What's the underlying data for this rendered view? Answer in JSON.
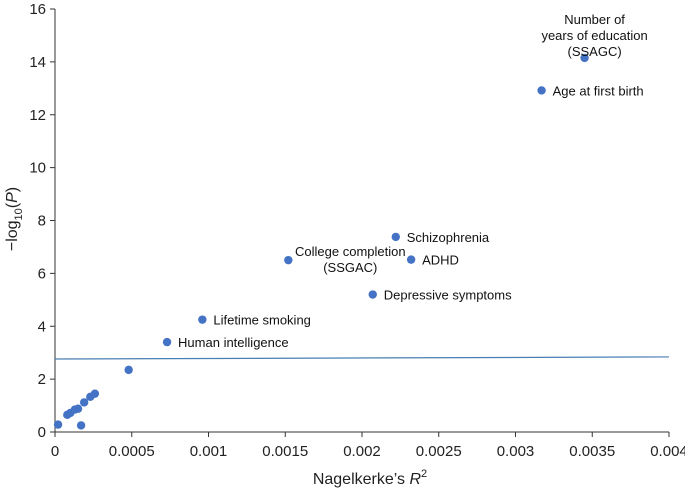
{
  "chart_data": {
    "type": "scatter",
    "title": "",
    "xlabel": "Nagelkerke’s R",
    "xlabel_sup": "2",
    "ylabel_prefix": "−log",
    "ylabel_sub": "10",
    "ylabel_suffix": "(P)",
    "xlim": [
      0,
      0.004
    ],
    "ylim": [
      0,
      16
    ],
    "x_ticks": [
      "0",
      "0.0005",
      "0.001",
      "0.0015",
      "0.002",
      "0.0025",
      "0.003",
      "0.0035",
      "0.004"
    ],
    "y_ticks": [
      "0",
      "2",
      "4",
      "6",
      "8",
      "10",
      "12",
      "14",
      "16"
    ],
    "point_color": "#4472c4",
    "line_color": "#4a7fb5",
    "threshold_line": {
      "x": [
        0,
        0.004
      ],
      "y": [
        2.76,
        2.84
      ]
    },
    "points": [
      {
        "x": 2e-05,
        "y": 0.28,
        "label": ""
      },
      {
        "x": 8e-05,
        "y": 0.65,
        "label": ""
      },
      {
        "x": 0.0001,
        "y": 0.72,
        "label": ""
      },
      {
        "x": 0.00013,
        "y": 0.85,
        "label": ""
      },
      {
        "x": 0.00015,
        "y": 0.88,
        "label": ""
      },
      {
        "x": 0.00017,
        "y": 0.25,
        "label": ""
      },
      {
        "x": 0.00019,
        "y": 1.12,
        "label": ""
      },
      {
        "x": 0.00023,
        "y": 1.33,
        "label": ""
      },
      {
        "x": 0.00026,
        "y": 1.45,
        "label": ""
      },
      {
        "x": 0.00048,
        "y": 2.35,
        "label": ""
      },
      {
        "x": 0.00073,
        "y": 3.4,
        "label": "Human intelligence"
      },
      {
        "x": 0.00096,
        "y": 4.25,
        "label": "Lifetime smoking"
      },
      {
        "x": 0.00152,
        "y": 6.5,
        "label": "College completion\n(SSGAC)"
      },
      {
        "x": 0.00207,
        "y": 5.2,
        "label": "Depressive symptoms"
      },
      {
        "x": 0.00222,
        "y": 7.38,
        "label": "Schizophrenia"
      },
      {
        "x": 0.00232,
        "y": 6.52,
        "label": "ADHD"
      },
      {
        "x": 0.00317,
        "y": 12.92,
        "label": "Age at first birth"
      },
      {
        "x": 0.00345,
        "y": 14.15,
        "label": "Number of\nyears of education\n(SSAGC)"
      }
    ]
  }
}
